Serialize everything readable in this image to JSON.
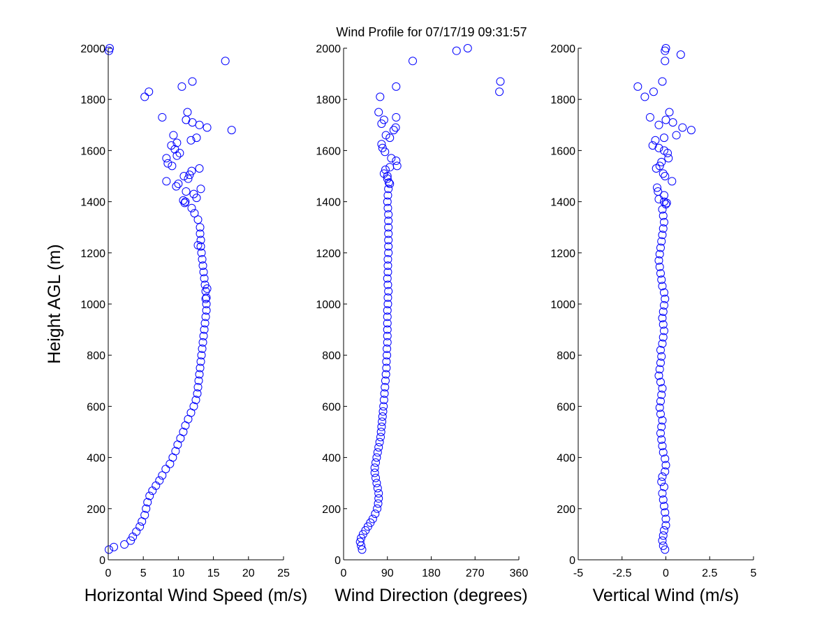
{
  "chart_data": {
    "title": "Wind Profile for  07/17/19 09:31:57",
    "type": "scatter",
    "panels": [
      {
        "xlabel": "Horizontal Wind Speed (m/s)",
        "ylabel": "Height AGL (m)",
        "xlim": [
          0,
          25
        ],
        "ylim": [
          0,
          2000
        ],
        "xticks": [
          "0",
          "5",
          "10",
          "15",
          "20",
          "25"
        ],
        "yticks": [
          "0",
          "200",
          "400",
          "600",
          "800",
          "1000",
          "1200",
          "1400",
          "1600",
          "1800",
          "2000"
        ],
        "profile": [
          [
            0.1,
            40
          ],
          [
            0.8,
            50
          ],
          [
            2.3,
            60
          ],
          [
            3.2,
            75
          ],
          [
            3.5,
            90
          ],
          [
            4.0,
            110
          ],
          [
            4.5,
            130
          ],
          [
            4.8,
            150
          ],
          [
            5.2,
            175
          ],
          [
            5.4,
            200
          ],
          [
            5.6,
            225
          ],
          [
            5.9,
            250
          ],
          [
            6.3,
            270
          ],
          [
            6.8,
            290
          ],
          [
            7.3,
            310
          ],
          [
            7.7,
            330
          ],
          [
            8.2,
            355
          ],
          [
            8.8,
            375
          ],
          [
            9.2,
            400
          ],
          [
            9.6,
            425
          ],
          [
            9.9,
            450
          ],
          [
            10.3,
            475
          ],
          [
            10.7,
            500
          ],
          [
            11.0,
            525
          ],
          [
            11.4,
            550
          ],
          [
            11.8,
            575
          ],
          [
            12.2,
            600
          ],
          [
            12.5,
            625
          ],
          [
            12.7,
            650
          ],
          [
            12.8,
            675
          ],
          [
            12.9,
            700
          ],
          [
            13.0,
            725
          ],
          [
            13.1,
            750
          ],
          [
            13.2,
            775
          ],
          [
            13.3,
            800
          ],
          [
            13.4,
            825
          ],
          [
            13.5,
            850
          ],
          [
            13.6,
            875
          ],
          [
            13.7,
            900
          ],
          [
            13.8,
            925
          ],
          [
            13.9,
            950
          ],
          [
            14.0,
            975
          ],
          [
            14.0,
            1000
          ],
          [
            14.0,
            1025
          ],
          [
            13.9,
            1050
          ],
          [
            13.8,
            1075
          ],
          [
            13.7,
            1100
          ],
          [
            13.6,
            1125
          ],
          [
            13.5,
            1150
          ],
          [
            13.4,
            1175
          ],
          [
            13.3,
            1200
          ],
          [
            13.2,
            1225
          ],
          [
            13.2,
            1250
          ],
          [
            13.1,
            1275
          ],
          [
            13.1,
            1300
          ],
          [
            12.8,
            1330
          ],
          [
            12.3,
            1355
          ],
          [
            11.9,
            1375
          ],
          [
            11.0,
            1400
          ]
        ],
        "scatter": [
          [
            0.2,
            2000
          ],
          [
            0.1,
            1990
          ],
          [
            16.7,
            1950
          ],
          [
            12.0,
            1870
          ],
          [
            10.5,
            1850
          ],
          [
            5.8,
            1830
          ],
          [
            5.2,
            1810
          ],
          [
            7.7,
            1730
          ],
          [
            11.3,
            1750
          ],
          [
            11.1,
            1720
          ],
          [
            12.0,
            1710
          ],
          [
            13.0,
            1700
          ],
          [
            14.1,
            1690
          ],
          [
            17.6,
            1680
          ],
          [
            9.3,
            1660
          ],
          [
            12.6,
            1650
          ],
          [
            11.8,
            1640
          ],
          [
            9.8,
            1630
          ],
          [
            9.0,
            1620
          ],
          [
            9.5,
            1605
          ],
          [
            10.2,
            1590
          ],
          [
            9.8,
            1580
          ],
          [
            8.3,
            1570
          ],
          [
            8.5,
            1550
          ],
          [
            9.1,
            1540
          ],
          [
            13.0,
            1530
          ],
          [
            11.9,
            1520
          ],
          [
            11.6,
            1505
          ],
          [
            10.8,
            1500
          ],
          [
            11.4,
            1490
          ],
          [
            8.3,
            1480
          ],
          [
            10.0,
            1470
          ],
          [
            9.7,
            1460
          ],
          [
            13.2,
            1450
          ],
          [
            11.1,
            1440
          ],
          [
            12.2,
            1430
          ],
          [
            12.6,
            1415
          ],
          [
            10.7,
            1405
          ],
          [
            10.9,
            1395
          ],
          [
            12.8,
            1230
          ],
          [
            14.1,
            1060
          ],
          [
            13.9,
            1020
          ]
        ]
      },
      {
        "xlabel": "Wind Direction (degrees)",
        "xlim": [
          0,
          360
        ],
        "ylim": [
          0,
          2000
        ],
        "xticks": [
          "0",
          "90",
          "180",
          "270",
          "360"
        ],
        "yticks": [
          "0",
          "200",
          "400",
          "600",
          "800",
          "1000",
          "1200",
          "1400",
          "1600",
          "1800",
          "2000"
        ],
        "profile": [
          [
            38,
            40
          ],
          [
            36,
            55
          ],
          [
            34,
            70
          ],
          [
            36,
            85
          ],
          [
            40,
            100
          ],
          [
            45,
            115
          ],
          [
            50,
            130
          ],
          [
            55,
            145
          ],
          [
            60,
            160
          ],
          [
            65,
            180
          ],
          [
            69,
            200
          ],
          [
            71,
            220
          ],
          [
            72,
            240
          ],
          [
            72,
            260
          ],
          [
            70,
            280
          ],
          [
            68,
            300
          ],
          [
            66,
            320
          ],
          [
            64,
            340
          ],
          [
            64,
            360
          ],
          [
            66,
            380
          ],
          [
            68,
            400
          ],
          [
            70,
            420
          ],
          [
            72,
            440
          ],
          [
            74,
            460
          ],
          [
            76,
            480
          ],
          [
            77,
            500
          ],
          [
            78,
            520
          ],
          [
            79,
            540
          ],
          [
            80,
            560
          ],
          [
            81,
            580
          ],
          [
            82,
            600
          ],
          [
            83,
            625
          ],
          [
            84,
            650
          ],
          [
            85,
            675
          ],
          [
            86,
            700
          ],
          [
            87,
            725
          ],
          [
            88,
            750
          ],
          [
            88,
            775
          ],
          [
            89,
            800
          ],
          [
            89,
            825
          ],
          [
            90,
            850
          ],
          [
            90,
            875
          ],
          [
            90,
            900
          ],
          [
            90,
            925
          ],
          [
            90,
            950
          ],
          [
            90,
            975
          ],
          [
            91,
            1000
          ],
          [
            91,
            1025
          ],
          [
            92,
            1050
          ],
          [
            91,
            1075
          ],
          [
            90,
            1100
          ],
          [
            91,
            1125
          ],
          [
            91,
            1150
          ],
          [
            91,
            1175
          ],
          [
            92,
            1200
          ],
          [
            92,
            1225
          ],
          [
            92,
            1250
          ],
          [
            92,
            1275
          ],
          [
            92,
            1300
          ],
          [
            92,
            1325
          ],
          [
            92,
            1350
          ],
          [
            91,
            1375
          ],
          [
            90,
            1400
          ],
          [
            91,
            1425
          ],
          [
            92,
            1450
          ],
          [
            93,
            1475
          ],
          [
            90,
            1490
          ]
        ],
        "scatter": [
          [
            232,
            1990
          ],
          [
            255,
            2000
          ],
          [
            142,
            1950
          ],
          [
            322,
            1870
          ],
          [
            320,
            1830
          ],
          [
            108,
            1850
          ],
          [
            75,
            1810
          ],
          [
            72,
            1750
          ],
          [
            83,
            1720
          ],
          [
            78,
            1705
          ],
          [
            108,
            1730
          ],
          [
            103,
            1680
          ],
          [
            107,
            1690
          ],
          [
            87,
            1660
          ],
          [
            95,
            1650
          ],
          [
            78,
            1625
          ],
          [
            80,
            1610
          ],
          [
            85,
            1595
          ],
          [
            98,
            1570
          ],
          [
            108,
            1560
          ],
          [
            110,
            1540
          ],
          [
            95,
            1535
          ],
          [
            86,
            1525
          ],
          [
            83,
            1510
          ],
          [
            95,
            1470
          ],
          [
            90,
            1500
          ]
        ]
      },
      {
        "xlabel": "Vertical Wind (m/s)",
        "xlim": [
          -5,
          5
        ],
        "ylim": [
          0,
          2000
        ],
        "xticks": [
          "-5",
          "-2.5",
          "0",
          "2.5",
          "5"
        ],
        "yticks": [
          "0",
          "200",
          "400",
          "600",
          "800",
          "1000",
          "1200",
          "1400",
          "1600",
          "1800",
          "2000"
        ],
        "profile": [
          [
            -0.05,
            40
          ],
          [
            -0.15,
            55
          ],
          [
            -0.2,
            75
          ],
          [
            -0.15,
            95
          ],
          [
            -0.1,
            115
          ],
          [
            0.0,
            135
          ],
          [
            0.0,
            160
          ],
          [
            -0.05,
            185
          ],
          [
            -0.1,
            210
          ],
          [
            -0.15,
            235
          ],
          [
            -0.2,
            260
          ],
          [
            -0.1,
            285
          ],
          [
            -0.25,
            305
          ],
          [
            -0.2,
            325
          ],
          [
            -0.05,
            345
          ],
          [
            0.0,
            370
          ],
          [
            -0.05,
            395
          ],
          [
            -0.15,
            420
          ],
          [
            -0.2,
            445
          ],
          [
            -0.25,
            470
          ],
          [
            -0.3,
            495
          ],
          [
            -0.25,
            520
          ],
          [
            -0.2,
            545
          ],
          [
            -0.3,
            570
          ],
          [
            -0.35,
            595
          ],
          [
            -0.3,
            620
          ],
          [
            -0.25,
            645
          ],
          [
            -0.2,
            670
          ],
          [
            -0.3,
            695
          ],
          [
            -0.4,
            720
          ],
          [
            -0.35,
            745
          ],
          [
            -0.3,
            770
          ],
          [
            -0.25,
            795
          ],
          [
            -0.3,
            820
          ],
          [
            -0.2,
            845
          ],
          [
            -0.15,
            870
          ],
          [
            -0.1,
            895
          ],
          [
            -0.15,
            920
          ],
          [
            -0.2,
            945
          ],
          [
            -0.15,
            970
          ],
          [
            -0.1,
            995
          ],
          [
            -0.05,
            1020
          ],
          [
            -0.1,
            1045
          ],
          [
            -0.2,
            1070
          ],
          [
            -0.25,
            1095
          ],
          [
            -0.3,
            1120
          ],
          [
            -0.35,
            1145
          ],
          [
            -0.4,
            1170
          ],
          [
            -0.35,
            1195
          ],
          [
            -0.3,
            1220
          ],
          [
            -0.25,
            1245
          ],
          [
            -0.2,
            1270
          ],
          [
            -0.15,
            1295
          ],
          [
            -0.1,
            1320
          ],
          [
            -0.15,
            1345
          ],
          [
            -0.2,
            1370
          ],
          [
            0.0,
            1390
          ],
          [
            -0.1,
            1400
          ]
        ],
        "scatter": [
          [
            0.0,
            2000
          ],
          [
            -0.05,
            1990
          ],
          [
            0.85,
            1975
          ],
          [
            -0.05,
            1950
          ],
          [
            -0.2,
            1870
          ],
          [
            -1.6,
            1850
          ],
          [
            -0.7,
            1830
          ],
          [
            -1.2,
            1810
          ],
          [
            0.2,
            1750
          ],
          [
            -0.9,
            1730
          ],
          [
            0.0,
            1720
          ],
          [
            0.4,
            1710
          ],
          [
            -0.4,
            1700
          ],
          [
            0.95,
            1690
          ],
          [
            1.45,
            1680
          ],
          [
            0.6,
            1660
          ],
          [
            -0.1,
            1650
          ],
          [
            -0.6,
            1640
          ],
          [
            -0.75,
            1620
          ],
          [
            -0.4,
            1610
          ],
          [
            -0.1,
            1600
          ],
          [
            0.1,
            1590
          ],
          [
            0.15,
            1570
          ],
          [
            -0.25,
            1555
          ],
          [
            -0.35,
            1540
          ],
          [
            -0.55,
            1530
          ],
          [
            -0.15,
            1510
          ],
          [
            -0.05,
            1500
          ],
          [
            0.35,
            1480
          ],
          [
            -0.5,
            1455
          ],
          [
            -0.45,
            1440
          ],
          [
            -0.1,
            1425
          ],
          [
            -0.4,
            1410
          ],
          [
            0.05,
            1395
          ]
        ]
      }
    ]
  }
}
